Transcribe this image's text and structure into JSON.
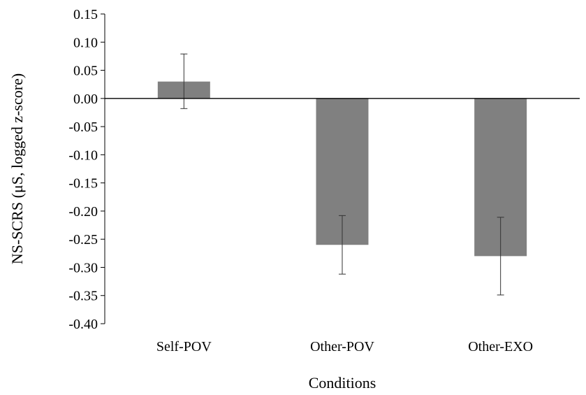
{
  "chart_data": {
    "type": "bar",
    "title": "",
    "xlabel": "Conditions",
    "ylabel": "NS-SCRS (μS, logged z-score)",
    "categories": [
      "Self-POV",
      "Other-POV",
      "Other-EXO"
    ],
    "series": [
      {
        "values": [
          0.03,
          -0.26,
          -0.28
        ],
        "error_low": [
          -0.018,
          -0.312,
          -0.349
        ],
        "error_high": [
          0.079,
          -0.208,
          -0.211
        ]
      }
    ],
    "ylim": [
      -0.4,
      0.15
    ],
    "yticks": [
      0.15,
      0.1,
      0.05,
      0.0,
      -0.05,
      -0.1,
      -0.15,
      -0.2,
      -0.25,
      -0.3,
      -0.35,
      -0.4
    ],
    "ytick_labels": [
      "0.15",
      "0.10",
      "0.05",
      "0.00",
      "-0.05",
      "-0.10",
      "-0.15",
      "-0.20",
      "-0.25",
      "-0.30",
      "-0.35",
      "-0.40"
    ],
    "bar_color": "#808080",
    "grid": false,
    "legend": "none"
  }
}
